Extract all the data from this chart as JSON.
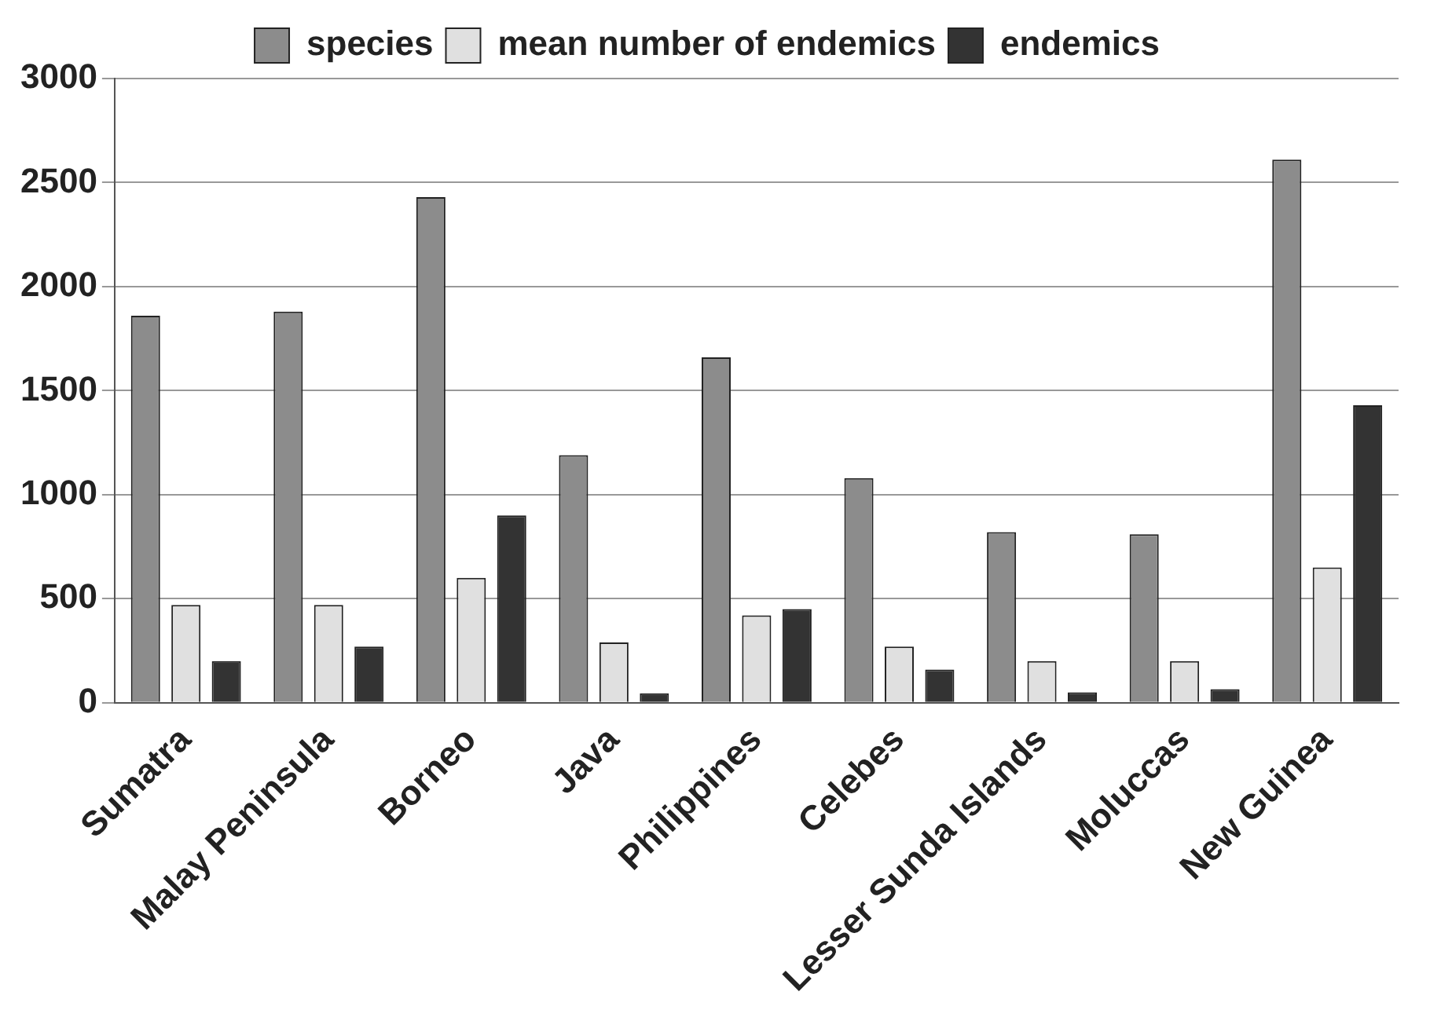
{
  "chart_data": {
    "type": "bar",
    "categories": [
      "Sumatra",
      "Malay Peninsula",
      "Borneo",
      "Java",
      "Philippines",
      "Celebes",
      "Lesser Sunda Islands",
      "Moluccas",
      "New Guinea"
    ],
    "series": [
      {
        "name": "species",
        "color": "#8c8c8c",
        "values": [
          1860,
          1880,
          2430,
          1190,
          1660,
          1080,
          820,
          810,
          2610
        ]
      },
      {
        "name": "mean number of endemics",
        "color": "#e0e0e0",
        "values": [
          470,
          470,
          600,
          290,
          420,
          270,
          200,
          200,
          650
        ]
      },
      {
        "name": "endemics",
        "color": "#333333",
        "values": [
          200,
          270,
          900,
          45,
          450,
          160,
          50,
          65,
          1430
        ]
      }
    ],
    "ylim": [
      0,
      3000
    ],
    "yticks": [
      0,
      500,
      1000,
      1500,
      2000,
      2500,
      3000
    ],
    "grid": "y",
    "legend": "top"
  }
}
